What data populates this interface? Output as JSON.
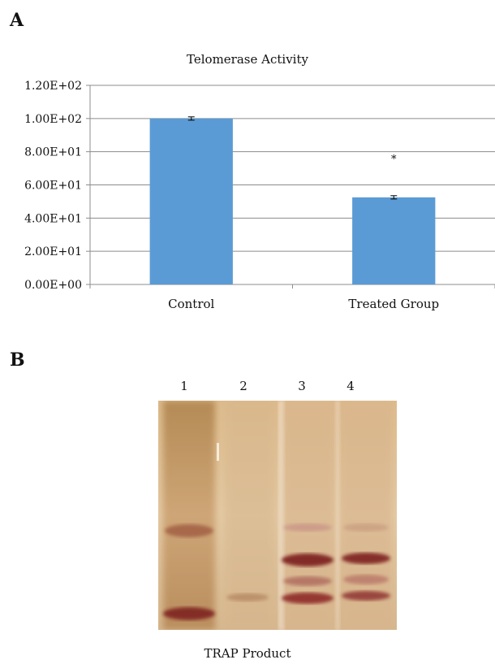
{
  "panel_a": {
    "label": "A"
  },
  "panel_b": {
    "label": "B",
    "lanes": [
      "1",
      "2",
      "3",
      "4"
    ],
    "caption": "TRAP Product"
  },
  "colors": {
    "bar": "#5b9bd5",
    "gel_bg": "#dcc09a",
    "band": "#8b1d1d"
  },
  "chart_data": {
    "type": "bar",
    "title": "Telomerase Activity",
    "categories": [
      "Control",
      "Treated Group"
    ],
    "values": [
      100,
      52.5
    ],
    "errors": [
      1,
      1
    ],
    "ylim": [
      0,
      120
    ],
    "yticks": [
      0,
      20,
      40,
      60,
      80,
      100,
      120
    ],
    "ytick_labels": [
      "0.00E+00",
      "2.00E+01",
      "4.00E+01",
      "6.00E+01",
      "8.00E+01",
      "1.00E+02",
      "1.20E+02"
    ],
    "annotations": [
      {
        "category": "Treated Group",
        "text": "*"
      }
    ],
    "grid": true,
    "xlabel": "",
    "ylabel": ""
  }
}
